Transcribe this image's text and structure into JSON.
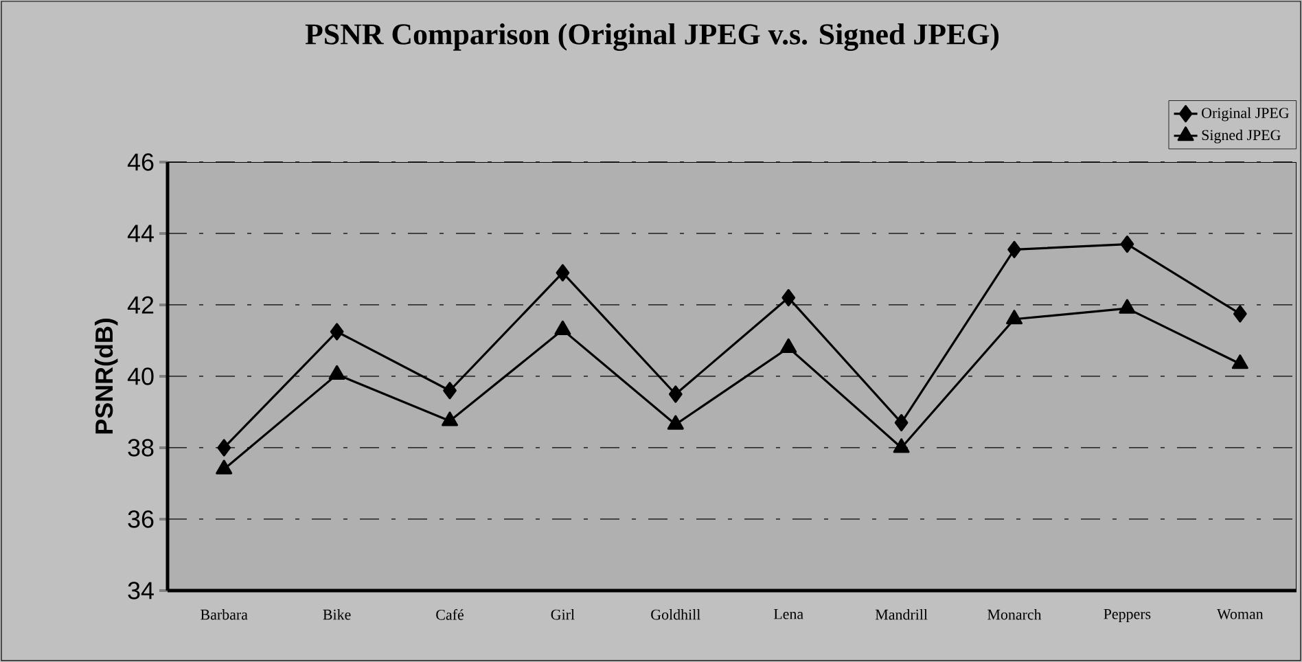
{
  "chart_data": {
    "type": "line",
    "title": "PSNR Comparison (Original JPEG v.s. Signed JPEG)",
    "ylabel": "PSNR(dB)",
    "categories": [
      "Barbara",
      "Bike",
      "Café",
      "Girl",
      "Goldhill",
      "Lena",
      "Mandrill",
      "Monarch",
      "Peppers",
      "Woman"
    ],
    "series": [
      {
        "name": "Original JPEG",
        "color": "#000000",
        "marker": "diamond",
        "values": [
          38.0,
          41.25,
          39.6,
          42.9,
          39.5,
          42.2,
          38.7,
          43.55,
          43.7,
          41.75
        ]
      },
      {
        "name": "Signed JPEG",
        "color": "#000000",
        "marker": "triangle",
        "values": [
          37.4,
          40.05,
          38.75,
          41.3,
          38.65,
          40.8,
          38.0,
          41.6,
          41.9,
          40.35
        ]
      }
    ],
    "ylim": [
      34,
      46
    ],
    "yticks": [
      34,
      36,
      38,
      40,
      42,
      44,
      46
    ],
    "grid": "y",
    "legend": "top right",
    "line_style": "solid"
  }
}
